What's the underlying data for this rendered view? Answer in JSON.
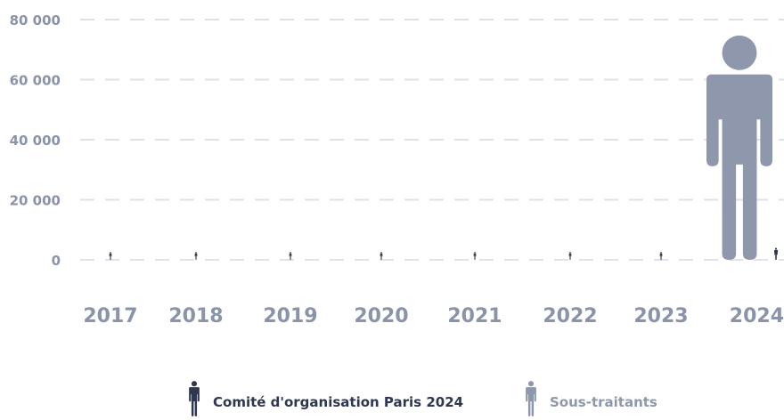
{
  "chart_data": {
    "type": "pictogram",
    "categories": [
      "2017",
      "2018",
      "2019",
      "2020",
      "2021",
      "2022",
      "2023",
      "2024"
    ],
    "series": [
      {
        "name": "Comité d'organisation Paris 2024",
        "color": "#2e3650",
        "values": [
          90,
          225,
          500,
          800,
          1000,
          1300,
          2200,
          4000
        ]
      },
      {
        "name": "Sous-traitants",
        "color": "#8f97ad",
        "values": [
          null,
          null,
          null,
          null,
          null,
          null,
          null,
          75000
        ]
      }
    ],
    "yticks": [
      "0",
      "20 000",
      "40 000",
      "60 000",
      "80 000"
    ],
    "ylim": [
      0,
      80000
    ],
    "grid": true,
    "legend_position": "bottom"
  },
  "legend": {
    "item1_label": "Comité d'organisation Paris 2024",
    "item2_label": "Sous-traitants"
  }
}
